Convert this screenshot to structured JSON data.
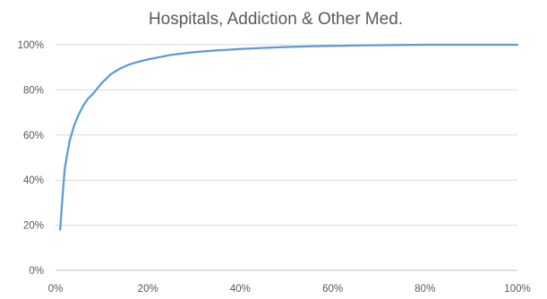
{
  "chart_data": {
    "type": "line",
    "title": "Hospitals, Addiction & Other Med.",
    "xlabel": "",
    "ylabel": "",
    "xlim": [
      0,
      100
    ],
    "ylim": [
      0,
      100
    ],
    "x_ticks": [
      "0%",
      "20%",
      "40%",
      "60%",
      "80%",
      "100%"
    ],
    "y_ticks": [
      "0%",
      "20%",
      "40%",
      "60%",
      "80%",
      "100%"
    ],
    "grid": "horizontal",
    "legend": "none",
    "series": [
      {
        "color": "#5B9BD5",
        "x": [
          1,
          1.5,
          2,
          3,
          4,
          5,
          6,
          7,
          8,
          10,
          12,
          14,
          16,
          18,
          20,
          25,
          30,
          35,
          40,
          45,
          50,
          55,
          60,
          65,
          70,
          75,
          80,
          85,
          90,
          95,
          100
        ],
        "y": [
          18,
          32,
          45,
          57,
          64,
          69,
          73,
          76,
          78,
          83,
          87,
          89.5,
          91.3,
          92.5,
          93.5,
          95.5,
          96.7,
          97.5,
          98.1,
          98.6,
          99,
          99.3,
          99.5,
          99.7,
          99.8,
          99.9,
          100,
          100,
          100,
          100,
          100
        ]
      }
    ]
  }
}
